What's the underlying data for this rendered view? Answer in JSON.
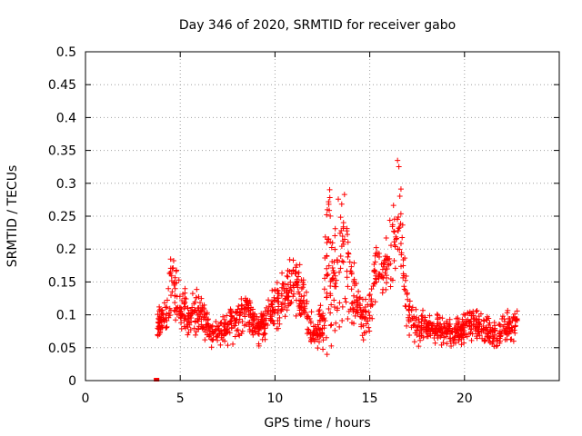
{
  "chart_data": {
    "type": "scatter",
    "title": "Day 346 of 2020, SRMTID for receiver gabo",
    "xlabel": "GPS time / hours",
    "ylabel": "SRMTID / TECUs",
    "xlim": [
      0,
      25
    ],
    "ylim": [
      0,
      0.5
    ],
    "x_ticks": [
      0,
      5,
      10,
      15,
      20
    ],
    "x_tick_labels": [
      "0",
      "5",
      "10",
      "15",
      "20"
    ],
    "y_ticks": [
      0,
      0.05,
      0.1,
      0.15,
      0.2,
      0.25,
      0.3,
      0.35,
      0.4,
      0.45,
      0.5
    ],
    "y_tick_labels": [
      "0",
      "0.05",
      "0.1",
      "0.15",
      "0.2",
      "0.25",
      "0.3",
      "0.35",
      "0.4",
      "0.45",
      "0.5"
    ],
    "grid": true,
    "marker": "+",
    "color": "#ff0000",
    "outlier_points": [
      {
        "x": 3.75,
        "y": 0.0
      }
    ],
    "x_range": [
      3.8,
      22.8
    ],
    "profile": [
      [
        3.8,
        0.09,
        0.02
      ],
      [
        4.3,
        0.1,
        0.03
      ],
      [
        4.5,
        0.15,
        0.05
      ],
      [
        5.0,
        0.11,
        0.03
      ],
      [
        5.5,
        0.1,
        0.03
      ],
      [
        6.0,
        0.1,
        0.03
      ],
      [
        6.5,
        0.08,
        0.02
      ],
      [
        7.0,
        0.075,
        0.02
      ],
      [
        7.5,
        0.08,
        0.02
      ],
      [
        8.0,
        0.09,
        0.025
      ],
      [
        8.5,
        0.11,
        0.03
      ],
      [
        9.0,
        0.08,
        0.02
      ],
      [
        9.5,
        0.09,
        0.025
      ],
      [
        10.0,
        0.11,
        0.03
      ],
      [
        10.5,
        0.13,
        0.03
      ],
      [
        11.0,
        0.15,
        0.04
      ],
      [
        11.5,
        0.12,
        0.03
      ],
      [
        12.0,
        0.07,
        0.02
      ],
      [
        12.5,
        0.08,
        0.04
      ],
      [
        12.8,
        0.2,
        0.12
      ],
      [
        13.2,
        0.14,
        0.08
      ],
      [
        13.6,
        0.2,
        0.1
      ],
      [
        14.0,
        0.14,
        0.05
      ],
      [
        14.5,
        0.1,
        0.03
      ],
      [
        15.0,
        0.1,
        0.03
      ],
      [
        15.3,
        0.17,
        0.05
      ],
      [
        15.8,
        0.16,
        0.04
      ],
      [
        16.2,
        0.2,
        0.06
      ],
      [
        16.6,
        0.25,
        0.08
      ],
      [
        17.0,
        0.1,
        0.03
      ],
      [
        17.5,
        0.08,
        0.02
      ],
      [
        18.5,
        0.08,
        0.02
      ],
      [
        19.5,
        0.07,
        0.02
      ],
      [
        20.5,
        0.09,
        0.025
      ],
      [
        21.5,
        0.07,
        0.02
      ],
      [
        22.8,
        0.085,
        0.025
      ]
    ],
    "point_count": 1400
  }
}
